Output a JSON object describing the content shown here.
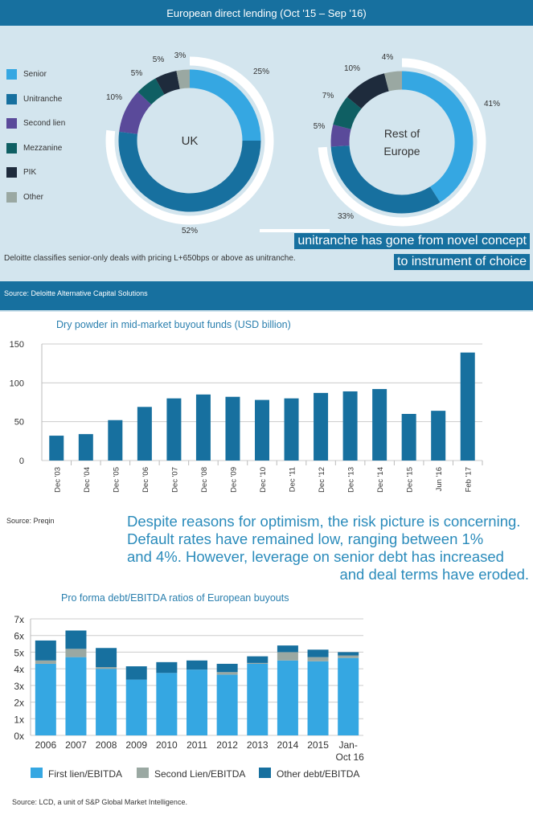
{
  "section1": {
    "title": "European direct lending (Oct '15 – Sep '16)",
    "legend": [
      {
        "label": "Senior",
        "color": "#35a7e2"
      },
      {
        "label": "Unitranche",
        "color": "#17709f"
      },
      {
        "label": "Second lien",
        "color": "#5a4a9a"
      },
      {
        "label": "Mezzanine",
        "color": "#0f5f63"
      },
      {
        "label": "PIK",
        "color": "#1e2b3c"
      },
      {
        "label": "Other",
        "color": "#9aa8a2"
      }
    ],
    "note": "Deloitte classifies senior-only deals with pricing L+650bps or above as unitranche.",
    "source": "Source: Deloitte Alternative Capital Solutions",
    "callout": [
      "unitranche has gone from novel concept",
      "to instrument of choice"
    ]
  },
  "section2": {
    "source": "Source: Preqin",
    "paragraph": [
      "Despite reasons for optimism, the risk picture is concerning.",
      "Default rates have remained low, ranging between 1%",
      "and 4%. However, leverage on senior debt has increased",
      "and deal terms have eroded."
    ]
  },
  "section3": {
    "source": "Source: LCD, a unit of S&P Global Market Intelligence."
  },
  "chart_data": [
    {
      "type": "pie",
      "donut": true,
      "center_label": "UK",
      "categories": [
        "Senior",
        "Unitranche",
        "Second lien",
        "Mezzanine",
        "PIK",
        "Other"
      ],
      "values": [
        25,
        52,
        10,
        5,
        5,
        3
      ],
      "labels": [
        "25%",
        "52%",
        "10%",
        "5%",
        "5%",
        "3%"
      ]
    },
    {
      "type": "pie",
      "donut": true,
      "center_label": "Rest of Europe",
      "categories": [
        "Senior",
        "Unitranche",
        "Second lien",
        "Mezzanine",
        "PIK",
        "Other"
      ],
      "values": [
        41,
        33,
        5,
        7,
        10,
        4
      ],
      "labels": [
        "41%",
        "33%",
        "5%",
        "7%",
        "10%",
        "4%"
      ]
    },
    {
      "type": "bar",
      "title": "Dry powder in mid-market buyout funds (USD billion)",
      "categories": [
        "Dec '03",
        "Dec '04",
        "Dec '05",
        "Dec '06",
        "Dec '07",
        "Dec '08",
        "Dec '09",
        "Dec '10",
        "Dec '11",
        "Dec '12",
        "Dec '13",
        "Dec '14",
        "Dec '15",
        "Jun '16",
        "Feb '17"
      ],
      "values": [
        32,
        34,
        52,
        69,
        80,
        85,
        82,
        78,
        80,
        87,
        89,
        92,
        60,
        64,
        139
      ],
      "ylim": [
        0,
        150
      ],
      "yticks": [
        "0",
        "50",
        "100",
        "150"
      ],
      "color": "#17709f",
      "grid": true
    },
    {
      "type": "bar",
      "stacked": true,
      "title": "Pro forma debt/EBITDA ratios of European buyouts",
      "categories": [
        "2006",
        "2007",
        "2008",
        "2009",
        "2010",
        "2011",
        "2012",
        "2013",
        "2014",
        "2015",
        "Jan-\nOct 16"
      ],
      "series": [
        {
          "name": "First lien/EBITDA",
          "color": "#35a7e2",
          "values": [
            4.3,
            4.7,
            4.0,
            3.35,
            3.75,
            3.95,
            3.65,
            4.3,
            4.5,
            4.45,
            4.65
          ]
        },
        {
          "name": "Second Lien/EBITDA",
          "color": "#9aa8a2",
          "values": [
            0.2,
            0.5,
            0.1,
            0,
            0,
            0,
            0.15,
            0.05,
            0.5,
            0.25,
            0.15
          ]
        },
        {
          "name": "Other debt/EBITDA",
          "color": "#17709f",
          "values": [
            1.2,
            1.1,
            1.15,
            0.8,
            0.65,
            0.55,
            0.5,
            0.4,
            0.4,
            0.45,
            0.2
          ]
        }
      ],
      "ylim": [
        0,
        7
      ],
      "yticks": [
        "0x",
        "1x",
        "2x",
        "3x",
        "4x",
        "5x",
        "6x",
        "7x"
      ],
      "legend": "bottom",
      "grid": true
    }
  ]
}
